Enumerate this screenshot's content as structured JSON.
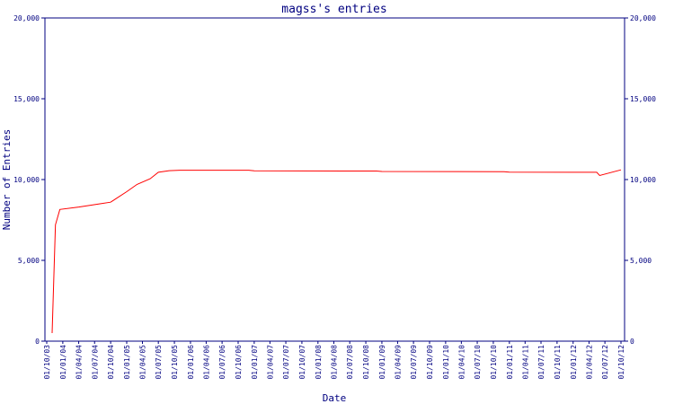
{
  "chart_data": {
    "type": "line",
    "title": "magss's entries",
    "xlabel": "Date",
    "ylabel": "Number of Entries",
    "ylim": [
      0,
      20000
    ],
    "yticks": [
      "0",
      "5,000",
      "10,000",
      "15,000",
      "20,000"
    ],
    "yticks_right": [
      "0",
      "5,000",
      "10,000",
      "15,000",
      "20,000"
    ],
    "ytick_values": [
      0,
      5000,
      10000,
      15000,
      20000
    ],
    "x_labels": [
      "01/10/03",
      "01/01/04",
      "01/04/04",
      "01/07/04",
      "01/10/04",
      "01/01/05",
      "01/04/05",
      "01/07/05",
      "01/10/05",
      "01/01/06",
      "01/04/06",
      "01/07/06",
      "01/10/06",
      "01/01/07",
      "01/04/07",
      "01/07/07",
      "01/10/07",
      "01/01/08",
      "01/04/08",
      "01/07/08",
      "01/10/08",
      "01/01/09",
      "01/04/09",
      "01/07/09",
      "01/10/09",
      "01/01/10",
      "01/04/10",
      "01/07/10",
      "01/10/10",
      "01/01/11",
      "01/04/11",
      "01/07/11",
      "01/10/11",
      "01/01/12",
      "01/04/12",
      "01/07/12",
      "01/10/12"
    ],
    "grid": false,
    "colors": {
      "axes": "#000080",
      "line": "#ff0000"
    },
    "series": [
      {
        "x": [
          "2003-11-01",
          "2003-11-20",
          "2003-12-15",
          "2004-04-01",
          "2004-08-01",
          "2004-10-01",
          "2005-01-01",
          "2005-03-01",
          "2005-05-15",
          "2005-07-01",
          "2005-09-01",
          "2005-11-01",
          "2006-06-01",
          "2006-12-01",
          "2007-01-01",
          "2008-12-01",
          "2009-01-01",
          "2010-12-01",
          "2011-01-01",
          "2012-05-15",
          "2012-06-01",
          "2012-10-01"
        ],
        "y": [
          500,
          7200,
          8150,
          8300,
          8500,
          8600,
          9250,
          9700,
          10050,
          10450,
          10550,
          10580,
          10580,
          10580,
          10540,
          10530,
          10500,
          10490,
          10460,
          10450,
          10250,
          10600
        ]
      }
    ]
  }
}
